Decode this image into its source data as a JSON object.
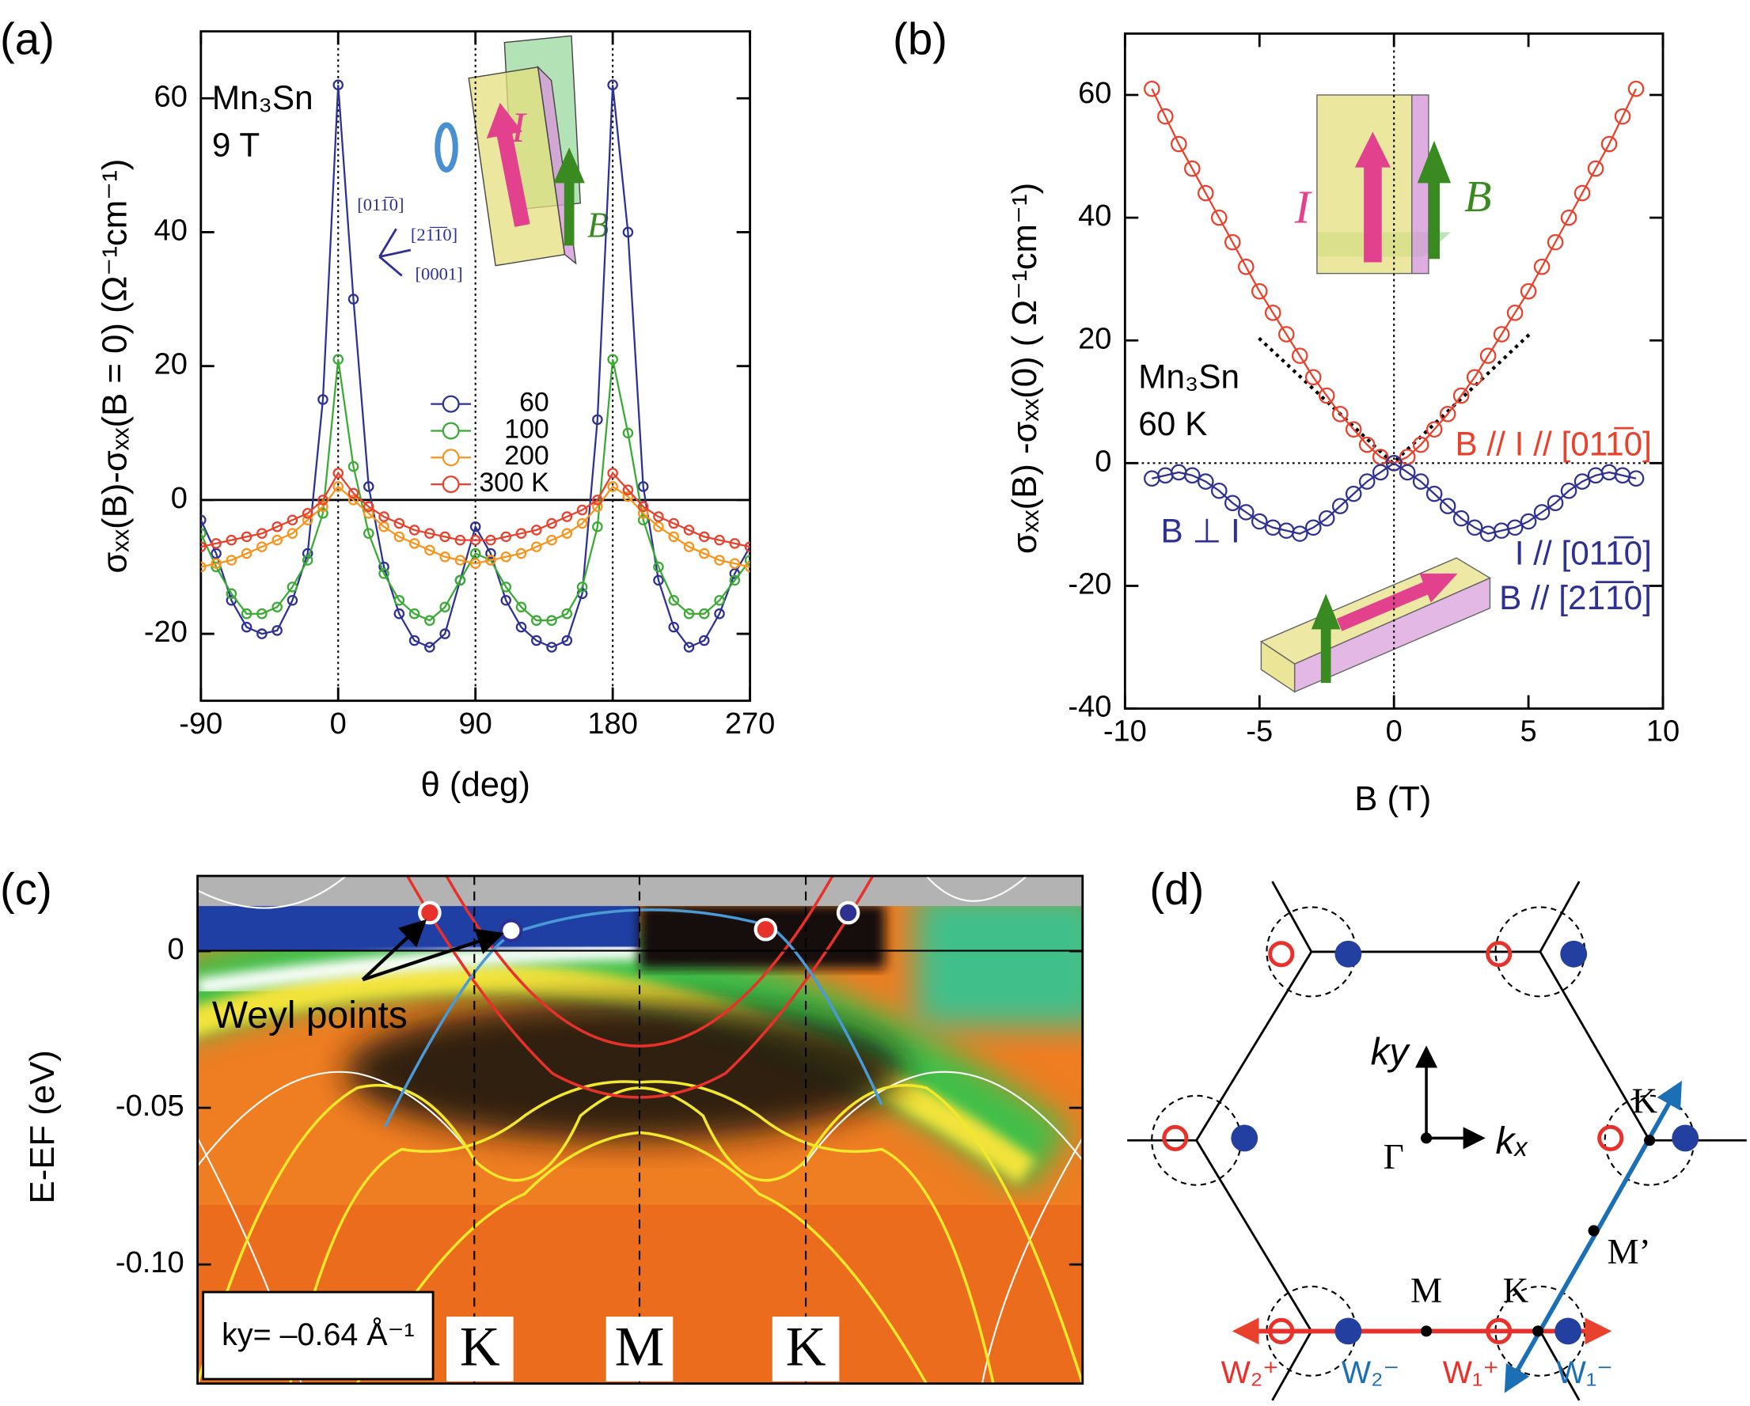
{
  "chart_data": [
    {
      "type": "line",
      "panel_label": "(a)",
      "x_label": "θ (deg)",
      "y_label": "σₓₓ(B)-σₓₓ(B = 0) (Ω⁻¹cm⁻¹)",
      "x": [
        -90,
        -80,
        -70,
        -60,
        -50,
        -40,
        -30,
        -20,
        -10,
        0,
        10,
        20,
        30,
        40,
        50,
        60,
        70,
        80,
        90,
        100,
        110,
        120,
        130,
        140,
        150,
        160,
        170,
        180,
        190,
        200,
        210,
        220,
        230,
        240,
        250,
        260,
        270
      ],
      "series": [
        {
          "name": "60",
          "color": "#2e3192",
          "values": [
            -3,
            -8,
            -15,
            -19,
            -20,
            -19.5,
            -15,
            -8,
            15,
            62,
            30,
            2,
            -10,
            -17,
            -21,
            -22,
            -20,
            -12,
            -4,
            -8,
            -15,
            -19,
            -21,
            -22,
            -21,
            -14,
            12,
            62,
            40,
            2,
            -12,
            -19,
            -22,
            -21,
            -17,
            -11,
            -7
          ]
        },
        {
          "name": "100",
          "color": "#3aaa35",
          "values": [
            -5,
            -10,
            -14,
            -17,
            -17,
            -16,
            -13,
            -9,
            -2,
            21,
            5,
            -5,
            -11,
            -15,
            -17,
            -18,
            -16,
            -12,
            -8,
            -9,
            -13,
            -16,
            -18,
            -18,
            -17,
            -13,
            -4,
            21,
            10,
            -3,
            -10,
            -15,
            -17,
            -17,
            -15,
            -12,
            -9
          ]
        },
        {
          "name": "200",
          "color": "#f7941d",
          "values": [
            -10,
            -9.5,
            -9,
            -8,
            -7,
            -6,
            -5,
            -3,
            -1,
            2,
            0,
            -2,
            -4,
            -5.5,
            -6.5,
            -7.5,
            -8.5,
            -9,
            -9.5,
            -9,
            -8.5,
            -8,
            -7,
            -6,
            -5,
            -3.5,
            -1,
            2,
            0.5,
            -2,
            -4,
            -5.5,
            -7,
            -8,
            -9,
            -9.5,
            -10
          ]
        },
        {
          "name": "300 K",
          "color": "#e8412c",
          "values": [
            -7,
            -6.5,
            -6,
            -5.5,
            -5,
            -4,
            -3,
            -2,
            0,
            4,
            1,
            -1,
            -2.5,
            -3.5,
            -4.5,
            -5,
            -5.5,
            -6,
            -6,
            -6,
            -5.5,
            -5,
            -4.5,
            -3.5,
            -2.5,
            -1.5,
            0,
            4,
            1.5,
            -1,
            -2.5,
            -3.5,
            -4.5,
            -5.5,
            -6,
            -6.5,
            -7
          ]
        }
      ],
      "xlim": [
        -90,
        270
      ],
      "ylim": [
        -30,
        70
      ],
      "xticks": [
        -90,
        0,
        90,
        180,
        270
      ],
      "yticks": [
        -20,
        0,
        20,
        40,
        60
      ],
      "reference_lines": {
        "x": [
          0,
          90,
          180
        ],
        "y": [
          0
        ]
      },
      "legend": "center-right",
      "annotations": [
        "Mn₃Sn",
        "9 T",
        "[011̅0]",
        "[21̅1̅0]",
        "[0001]",
        "I",
        "B"
      ]
    },
    {
      "type": "line",
      "panel_label": "(b)",
      "x_label": "B (T)",
      "y_label": "σₓₓ(B) -σₓₓ(0) ( Ω⁻¹cm⁻¹)",
      "x": [
        -9,
        -8.5,
        -8,
        -7.5,
        -7,
        -6.5,
        -6,
        -5.5,
        -5,
        -4.5,
        -4,
        -3.5,
        -3,
        -2.5,
        -2,
        -1.5,
        -1,
        -0.5,
        0,
        0.5,
        1,
        1.5,
        2,
        2.5,
        3,
        3.5,
        4,
        4.5,
        5,
        5.5,
        6,
        6.5,
        7,
        7.5,
        8,
        8.5,
        9
      ],
      "series": [
        {
          "name": "B // I  // [011̅0]",
          "color": "#e8412c",
          "values": [
            61,
            56.5,
            52,
            48,
            44,
            40,
            36,
            32,
            28,
            24.5,
            21,
            17.5,
            14,
            11,
            8,
            5.5,
            3,
            1,
            0,
            1,
            3,
            5.5,
            8,
            11,
            14,
            17.5,
            21,
            24.5,
            28,
            32,
            36,
            40,
            44,
            48,
            52,
            56.5,
            61
          ]
        },
        {
          "name": "B ⊥ I",
          "color": "#2e3192",
          "values": [
            -2.5,
            -2,
            -1.5,
            -2,
            -3,
            -4.5,
            -6.5,
            -8,
            -9.5,
            -10.5,
            -11,
            -11.5,
            -10.5,
            -9,
            -7,
            -5,
            -3,
            -1.5,
            0,
            -1.5,
            -3,
            -5,
            -7,
            -9,
            -10.5,
            -11.5,
            -11,
            -10.5,
            -9.5,
            -8,
            -6.5,
            -4.5,
            -3,
            -2,
            -1.5,
            -2,
            -2.5
          ]
        }
      ],
      "xlim": [
        -10,
        10
      ],
      "ylim": [
        -40,
        70
      ],
      "xticks": [
        -10,
        -5,
        0,
        5,
        10
      ],
      "yticks": [
        -40,
        -20,
        0,
        20,
        40,
        60
      ],
      "reference_lines": {
        "x": [
          0
        ],
        "y": [
          0
        ]
      },
      "annotations": [
        "Mn₃Sn",
        "60 K",
        "I // [011̅0]",
        "B // [21̅1̅0]",
        "I",
        "B"
      ]
    },
    {
      "type": "image",
      "panel_label": "(c)",
      "y_label": "E-EF (eV)",
      "ylim": [
        -0.138,
        0.024
      ],
      "yticks": [
        0,
        -0.05,
        {
          "value": -0.1,
          "label": "-0.10"
        }
      ],
      "annotations": [
        "Weyl points",
        "K",
        "M",
        "K",
        "ky= –0.64 Å⁻¹"
      ]
    }
  ],
  "diagram": {
    "panel_label": "(d)",
    "axes": [
      "ky",
      "kₓ"
    ],
    "points": [
      "Γ",
      "K",
      "K",
      "M",
      "M’"
    ],
    "weyl": [
      "W₂⁺",
      "W₂⁻",
      "W₁⁺",
      "W₁⁻"
    ]
  }
}
